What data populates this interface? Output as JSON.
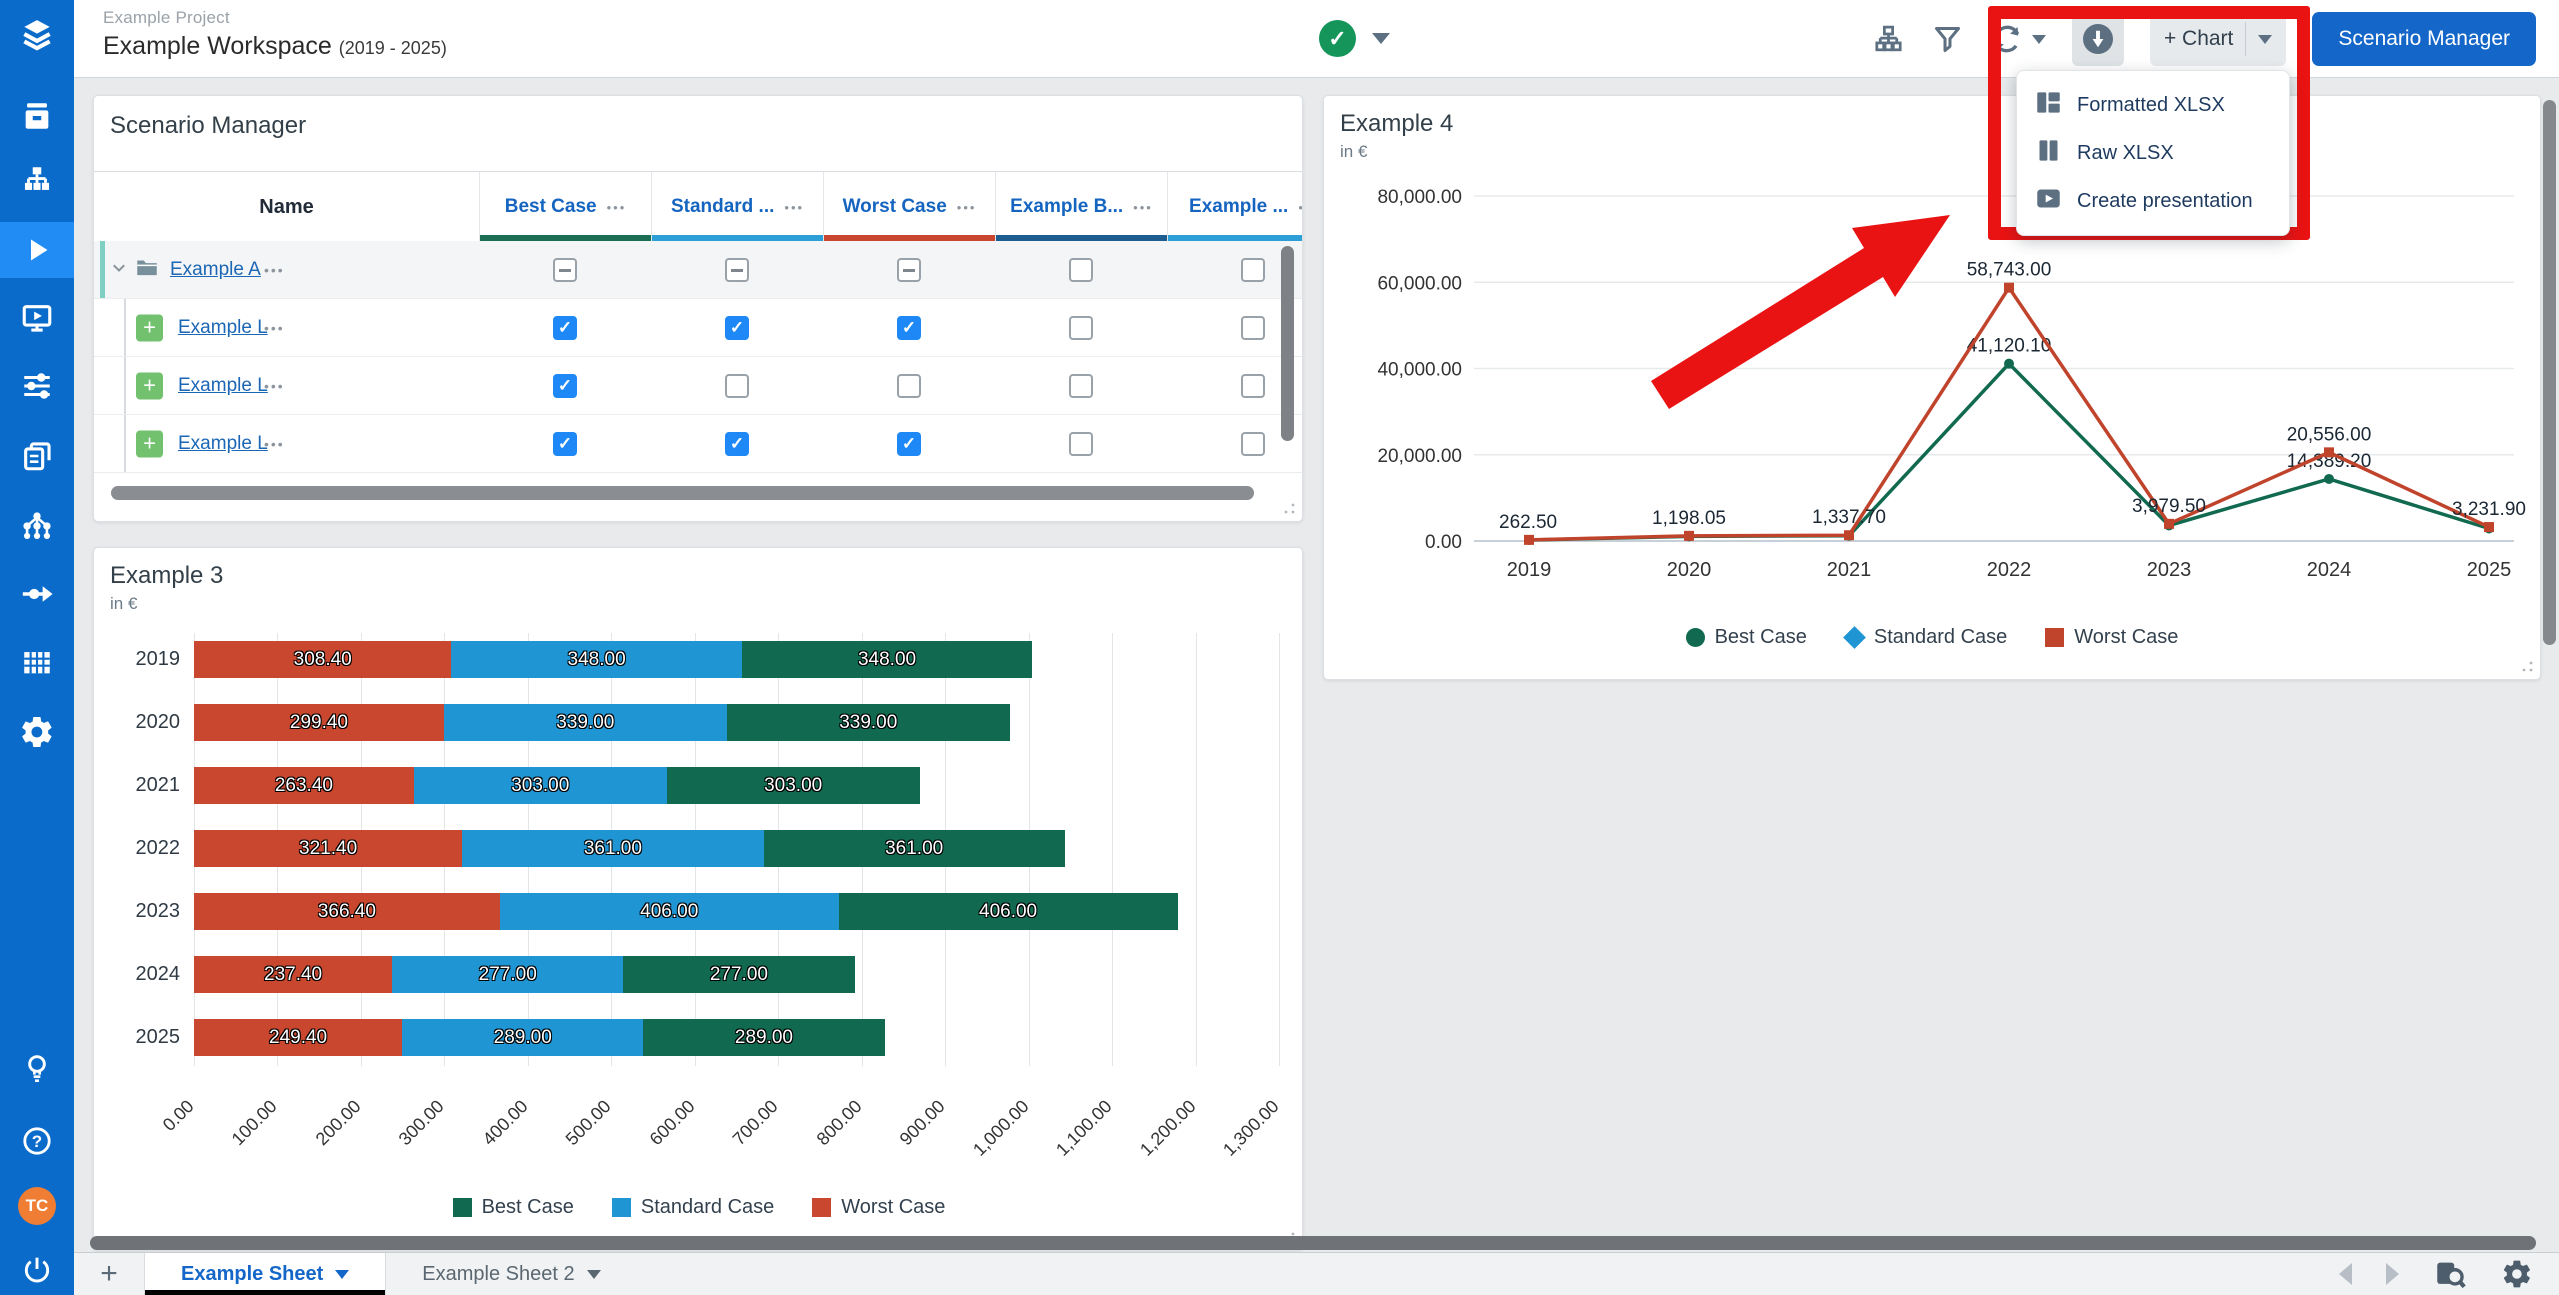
{
  "app": {
    "project": "Example Project",
    "workspace": "Example Workspace",
    "range": "(2019 - 2025)",
    "status": {
      "icon": "check",
      "check_glyph": "✓",
      "color": "#16955a"
    },
    "toolbar": {
      "chart_button": "+ Chart",
      "scenario_manager_button": "Scenario Manager",
      "icons": [
        "org-chart-icon",
        "filter-icon",
        "refresh-icon",
        "download-icon"
      ]
    }
  },
  "export_menu": {
    "items": [
      {
        "label": "Formatted XLSX",
        "icon": "formatted-xlsx-icon"
      },
      {
        "label": "Raw XLSX",
        "icon": "raw-xlsx-icon"
      },
      {
        "label": "Create presentation",
        "icon": "presentation-icon"
      }
    ]
  },
  "annotation": {
    "color": "#ea1313",
    "shapes": [
      "highlight-box",
      "arrow-pointing-to-export-menu"
    ]
  },
  "sidebar": {
    "avatar_initials": "TC",
    "avatar_color": "#ef7d33",
    "items": [
      "logo",
      "archive",
      "org-chart",
      "play",
      "presentation",
      "sliders",
      "copy",
      "node-tree",
      "flow-arrow",
      "grid",
      "gear",
      "lightbulb",
      "help",
      "avatar",
      "power"
    ],
    "active_item": "play"
  },
  "scenario_manager": {
    "title": "Scenario Manager",
    "name_column": "Name",
    "menu_glyph": "•••",
    "columns": [
      {
        "label": "Best Case",
        "underline": "#1b6e53"
      },
      {
        "label": "Standard ...",
        "underline": "#2b9fd6"
      },
      {
        "label": "Worst Case",
        "underline": "#c8472e"
      },
      {
        "label": "Example B...",
        "underline": "#1d5d8f"
      },
      {
        "label": "Example ...",
        "underline": "#2b9fd6"
      }
    ],
    "rows": [
      {
        "name": "Example A",
        "type": "folder",
        "expanded": true,
        "checks": [
          "indeterminate",
          "indeterminate",
          "indeterminate",
          "unchecked",
          "unchecked"
        ]
      },
      {
        "name": "Example L",
        "type": "leaf",
        "checks": [
          "checked",
          "checked",
          "checked",
          "unchecked",
          "unchecked"
        ]
      },
      {
        "name": "Example L",
        "type": "leaf",
        "checks": [
          "checked",
          "unchecked",
          "unchecked",
          "unchecked",
          "unchecked"
        ]
      },
      {
        "name": "Example L",
        "type": "leaf",
        "checks": [
          "checked",
          "checked",
          "checked",
          "unchecked",
          "unchecked"
        ]
      }
    ]
  },
  "chart_data": [
    {
      "type": "bar",
      "orientation": "horizontal",
      "stacked": true,
      "title": "Example 3",
      "subtitle": "in €",
      "categories": [
        "2019",
        "2020",
        "2021",
        "2022",
        "2023",
        "2024",
        "2025"
      ],
      "series": [
        {
          "name": "Worst Case",
          "color": "#c8472e",
          "values": [
            308.4,
            299.4,
            263.4,
            321.4,
            366.4,
            237.4,
            249.4
          ],
          "labels": [
            "308.40",
            "299.40",
            "263.40",
            "321.40",
            "366.40",
            "237.40",
            "249.40"
          ]
        },
        {
          "name": "Standard Case",
          "color": "#2095d3",
          "values": [
            348.0,
            339.0,
            303.0,
            361.0,
            406.0,
            277.0,
            289.0
          ],
          "labels": [
            "348.00",
            "339.00",
            "303.00",
            "361.00",
            "406.00",
            "277.00",
            "289.00"
          ]
        },
        {
          "name": "Best Case",
          "color": "#116a4f",
          "values": [
            348.0,
            339.0,
            303.0,
            361.0,
            406.0,
            277.0,
            289.0
          ],
          "labels": [
            "348.00",
            "339.00",
            "303.00",
            "361.00",
            "406.00",
            "277.00",
            "289.00"
          ]
        }
      ],
      "xlim": [
        0,
        1300
      ],
      "x_ticks": [
        "0.00",
        "100.00",
        "200.00",
        "300.00",
        "400.00",
        "500.00",
        "600.00",
        "700.00",
        "800.00",
        "900.00",
        "1,000.00",
        "1,100.00",
        "1,200.00",
        "1,300.00"
      ],
      "grid": true,
      "legend_position": "bottom",
      "legend": [
        {
          "label": "Best Case",
          "color": "#116a4f",
          "marker": "square"
        },
        {
          "label": "Standard Case",
          "color": "#2095d3",
          "marker": "square"
        },
        {
          "label": "Worst Case",
          "color": "#c8472e",
          "marker": "square"
        }
      ]
    },
    {
      "type": "line",
      "title": "Example 4",
      "subtitle": "in €",
      "x": [
        "2019",
        "2020",
        "2021",
        "2022",
        "2023",
        "2024",
        "2025"
      ],
      "ylim": [
        0,
        80000
      ],
      "y_ticks": [
        "0.00",
        "20,000.00",
        "40,000.00",
        "60,000.00",
        "80,000.00"
      ],
      "grid": true,
      "series": [
        {
          "name": "Best Case",
          "color": "#116a4f",
          "marker": "circle",
          "values": [
            230,
            1080,
            1220,
            41120.1,
            3600,
            14389.2,
            2900
          ],
          "labels": [
            "",
            "",
            "",
            "41,120.10",
            "",
            "14,389.20",
            ""
          ]
        },
        {
          "name": "Standard Case",
          "color": "#2095d3",
          "marker": "diamond",
          "values": null,
          "note": "line not visible (hidden behind Best Case)"
        },
        {
          "name": "Worst Case",
          "color": "#c0432c",
          "marker": "square",
          "values": [
            262.5,
            1198.05,
            1337.7,
            58743.0,
            3979.5,
            20556.0,
            3231.9
          ],
          "labels": [
            "262.50",
            "1,198.05",
            "1,337.70",
            "58,743.00",
            "3,979.50",
            "20,556.00",
            "3,231.90"
          ]
        }
      ],
      "legend_position": "bottom",
      "legend": [
        {
          "label": "Best Case",
          "color": "#116a4f",
          "marker": "circle"
        },
        {
          "label": "Standard Case",
          "color": "#2095d3",
          "marker": "diamond"
        },
        {
          "label": "Worst Case",
          "color": "#c0432c",
          "marker": "square"
        }
      ]
    }
  ],
  "footer": {
    "add_label": "+",
    "tabs": [
      {
        "label": "Example Sheet",
        "active": true
      },
      {
        "label": "Example Sheet 2",
        "active": false
      }
    ],
    "icons": [
      "prev-sheet",
      "next-sheet",
      "sheet-search",
      "settings"
    ]
  }
}
